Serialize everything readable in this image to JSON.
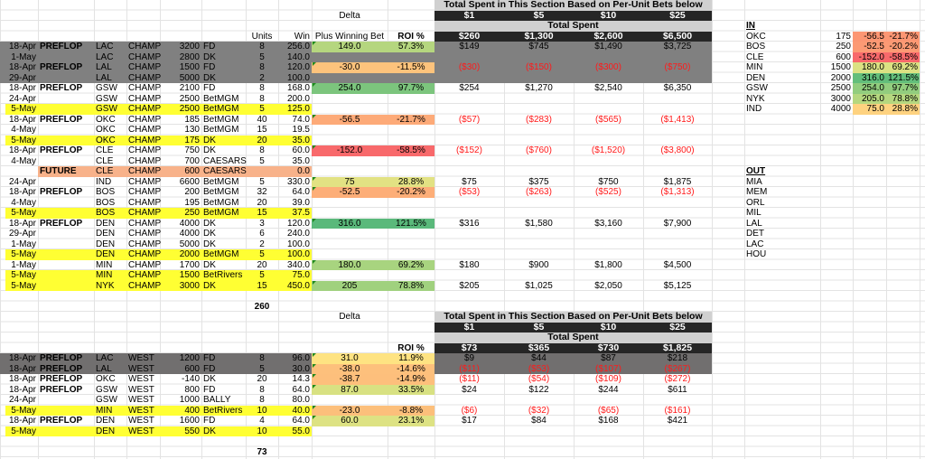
{
  "top": {
    "section_header": "Total Spent in This Section Based on Per-Unit Bets below",
    "delta_label": "Delta",
    "unit_bets": [
      "$1",
      "$5",
      "$10",
      "$25"
    ],
    "total_spent_label": "Total Spent",
    "units_label": "Units",
    "win_label": "Win",
    "plus_label": "Plus Winning Bet",
    "roi_label": "ROI %",
    "totals": [
      "$260",
      "$1,300",
      "$2,600",
      "$6,500"
    ],
    "units_total": "260",
    "rows": [
      {
        "date": "18-Apr",
        "type": "PREFLOP",
        "team": "LAC",
        "market": "CHAMP",
        "odds": "3200",
        "book": "FD",
        "units": "8",
        "win": "256.0",
        "hl": "gray",
        "delta": "149.0",
        "roi": "57.3%",
        "color": "#b5d67f",
        "spent": [
          "$149",
          "$745",
          "$1,490",
          "$3,725"
        ],
        "neg": false
      },
      {
        "date": "1-May",
        "type": "",
        "team": "LAC",
        "market": "CHAMP",
        "odds": "2800",
        "book": "DK",
        "units": "5",
        "win": "140.0",
        "hl": "gray"
      },
      {
        "date": "18-Apr",
        "type": "PREFLOP",
        "team": "LAL",
        "market": "CHAMP",
        "odds": "1500",
        "book": "FD",
        "units": "8",
        "win": "120.0",
        "hl": "gray",
        "delta": "-30.0",
        "roi": "-11.5%",
        "color": "#fdc37c",
        "spent": [
          "($30)",
          "($150)",
          "($300)",
          "($750)"
        ],
        "neg": true
      },
      {
        "date": "29-Apr",
        "type": "",
        "team": "LAL",
        "market": "CHAMP",
        "odds": "5000",
        "book": "DK",
        "units": "2",
        "win": "100.0",
        "hl": "gray"
      },
      {
        "date": "18-Apr",
        "type": "PREFLOP",
        "team": "GSW",
        "market": "CHAMP",
        "odds": "2100",
        "book": "FD",
        "units": "8",
        "win": "168.0",
        "hl": "",
        "delta": "254.0",
        "roi": "97.7%",
        "color": "#7cc57d",
        "spent": [
          "$254",
          "$1,270",
          "$2,540",
          "$6,350"
        ],
        "neg": false
      },
      {
        "date": "24-Apr",
        "type": "",
        "team": "GSW",
        "market": "CHAMP",
        "odds": "2500",
        "book": "BetMGM",
        "units": "8",
        "win": "200.0",
        "hl": ""
      },
      {
        "date": "5-May",
        "type": "",
        "team": "GSW",
        "market": "CHAMP",
        "odds": "2500",
        "book": "BetMGM",
        "units": "5",
        "win": "125.0",
        "hl": "yellow"
      },
      {
        "date": "18-Apr",
        "type": "PREFLOP",
        "team": "OKC",
        "market": "CHAMP",
        "odds": "185",
        "book": "BetMGM",
        "units": "40",
        "win": "74.0",
        "hl": "",
        "delta": "-56.5",
        "roi": "-21.7%",
        "color": "#fdaa78",
        "spent": [
          "($57)",
          "($283)",
          "($565)",
          "($1,413)"
        ],
        "neg": true
      },
      {
        "date": "4-May",
        "type": "",
        "team": "OKC",
        "market": "CHAMP",
        "odds": "130",
        "book": "BetMGM",
        "units": "15",
        "win": "19.5",
        "hl": ""
      },
      {
        "date": "5-May",
        "type": "",
        "team": "OKC",
        "market": "CHAMP",
        "odds": "175",
        "book": "DK",
        "units": "20",
        "win": "35.0",
        "hl": "yellow"
      },
      {
        "date": "18-Apr",
        "type": "PREFLOP",
        "team": "CLE",
        "market": "CHAMP",
        "odds": "750",
        "book": "DK",
        "units": "8",
        "win": "60.0",
        "hl": "",
        "delta": "-152.0",
        "roi": "-58.5%",
        "color": "#f8696b",
        "spent": [
          "($152)",
          "($760)",
          "($1,520)",
          "($3,800)"
        ],
        "neg": true
      },
      {
        "date": "4-May",
        "type": "",
        "team": "CLE",
        "market": "CHAMP",
        "odds": "700",
        "book": "CAESARS",
        "units": "5",
        "win": "35.0",
        "hl": ""
      },
      {
        "date": "",
        "type": "FUTURE",
        "team": "CLE",
        "market": "CHAMP",
        "odds": "600",
        "book": "CAESARS",
        "units": "",
        "win": "0.0",
        "hl": "future"
      },
      {
        "date": "24-Apr",
        "type": "",
        "team": "IND",
        "market": "CHAMP",
        "odds": "6600",
        "book": "BetMGM",
        "units": "5",
        "win": "330.0",
        "hl": "",
        "delta": "75",
        "roi": "28.8%",
        "color": "#e2e283",
        "spent": [
          "$75",
          "$375",
          "$750",
          "$1,875"
        ],
        "neg": false
      },
      {
        "date": "18-Apr",
        "type": "PREFLOP",
        "team": "BOS",
        "market": "CHAMP",
        "odds": "200",
        "book": "BetMGM",
        "units": "32",
        "win": "64.0",
        "hl": "",
        "delta": "-52.5",
        "roi": "-20.2%",
        "color": "#fdae78",
        "spent": [
          "($53)",
          "($263)",
          "($525)",
          "($1,313)"
        ],
        "neg": true
      },
      {
        "date": "4-May",
        "type": "",
        "team": "BOS",
        "market": "CHAMP",
        "odds": "195",
        "book": "BetMGM",
        "units": "20",
        "win": "39.0",
        "hl": ""
      },
      {
        "date": "5-May",
        "type": "",
        "team": "BOS",
        "market": "CHAMP",
        "odds": "250",
        "book": "BetMGM",
        "units": "15",
        "win": "37.5",
        "hl": "yellow"
      },
      {
        "date": "18-Apr",
        "type": "PREFLOP",
        "team": "DEN",
        "market": "CHAMP",
        "odds": "4000",
        "book": "DK",
        "units": "3",
        "win": "120.0",
        "hl": "",
        "delta": "316.0",
        "roi": "121.5%",
        "color": "#5ab97b",
        "spent": [
          "$316",
          "$1,580",
          "$3,160",
          "$7,900"
        ],
        "neg": false
      },
      {
        "date": "29-Apr",
        "type": "",
        "team": "DEN",
        "market": "CHAMP",
        "odds": "4000",
        "book": "DK",
        "units": "6",
        "win": "240.0",
        "hl": ""
      },
      {
        "date": "1-May",
        "type": "",
        "team": "DEN",
        "market": "CHAMP",
        "odds": "5000",
        "book": "DK",
        "units": "2",
        "win": "100.0",
        "hl": ""
      },
      {
        "date": "5-May",
        "type": "",
        "team": "DEN",
        "market": "CHAMP",
        "odds": "2000",
        "book": "BetMGM",
        "units": "5",
        "win": "100.0",
        "hl": "yellow"
      },
      {
        "date": "1-May",
        "type": "",
        "team": "MIN",
        "market": "CHAMP",
        "odds": "1700",
        "book": "DK",
        "units": "20",
        "win": "340.0",
        "hl": "",
        "delta": "180.0",
        "roi": "69.2%",
        "color": "#a8d47f",
        "spent": [
          "$180",
          "$900",
          "$1,800",
          "$4,500"
        ],
        "neg": false
      },
      {
        "date": "5-May",
        "type": "",
        "team": "MIN",
        "market": "CHAMP",
        "odds": "1500",
        "book": "BetRivers",
        "units": "5",
        "win": "75.0",
        "hl": "yellow"
      },
      {
        "date": "5-May",
        "type": "",
        "team": "NYK",
        "market": "CHAMP",
        "odds": "3000",
        "book": "DK",
        "units": "15",
        "win": "450.0",
        "hl": "yellow",
        "delta": "205",
        "roi": "78.8%",
        "color": "#a0d17e",
        "spent": [
          "$205",
          "$1,025",
          "$2,050",
          "$5,125"
        ],
        "neg": false
      }
    ]
  },
  "bottom": {
    "section_header": "Total Spent in This Section Based on Per-Unit Bets below",
    "delta_label": "Delta",
    "unit_bets": [
      "$1",
      "$5",
      "$10",
      "$25"
    ],
    "total_spent_label": "Total Spent",
    "roi_label": "ROI %",
    "totals": [
      "$73",
      "$365",
      "$730",
      "$1,825"
    ],
    "units_total": "73",
    "rows": [
      {
        "date": "18-Apr",
        "type": "PREFLOP",
        "team": "LAC",
        "market": "WEST",
        "odds": "1200",
        "book": "FD",
        "units": "8",
        "win": "96.0",
        "hl": "gray2",
        "delta": "31.0",
        "roi": "11.9%",
        "color": "#fee382",
        "spent": [
          "$9",
          "$44",
          "$87",
          "$218"
        ],
        "neg": false
      },
      {
        "date": "18-Apr",
        "type": "PREFLOP",
        "team": "LAL",
        "market": "WEST",
        "odds": "600",
        "book": "FD",
        "units": "5",
        "win": "30.0",
        "hl": "gray2",
        "delta": "-38.0",
        "roi": "-14.6%",
        "color": "#fdc07c",
        "spent": [
          "($11)",
          "($53)",
          "($107)",
          "($267)"
        ],
        "neg": true
      },
      {
        "date": "18-Apr",
        "type": "PREFLOP",
        "team": "OKC",
        "market": "WEST",
        "odds": "-140",
        "book": "DK",
        "units": "20",
        "win": "14.3",
        "hl": "",
        "delta": "-38.7",
        "roi": "-14.9%",
        "color": "#fdbf7c",
        "spent": [
          "($11)",
          "($54)",
          "($109)",
          "($272)"
        ],
        "neg": true
      },
      {
        "date": "18-Apr",
        "type": "PREFLOP",
        "team": "GSW",
        "market": "WEST",
        "odds": "800",
        "book": "FD",
        "units": "8",
        "win": "64.0",
        "hl": "",
        "delta": "87.0",
        "roi": "33.5%",
        "color": "#d8e182",
        "spent": [
          "$24",
          "$122",
          "$244",
          "$611"
        ],
        "neg": false
      },
      {
        "date": "24-Apr",
        "type": "",
        "team": "GSW",
        "market": "WEST",
        "odds": "1000",
        "book": "BALLY",
        "units": "8",
        "win": "80.0",
        "hl": ""
      },
      {
        "date": "5-May",
        "type": "",
        "team": "MIN",
        "market": "WEST",
        "odds": "400",
        "book": "BetRivers",
        "units": "10",
        "win": "40.0",
        "hl": "yellow",
        "delta": "-23.0",
        "roi": "-8.8%",
        "color": "#fcbf7b",
        "spent": [
          "($6)",
          "($32)",
          "($65)",
          "($161)"
        ],
        "neg": true
      },
      {
        "date": "18-Apr",
        "type": "PREFLOP",
        "team": "DEN",
        "market": "WEST",
        "odds": "1600",
        "book": "FD",
        "units": "4",
        "win": "64.0",
        "hl": "",
        "delta": "60.0",
        "roi": "23.1%",
        "color": "#dde283",
        "spent": [
          "$17",
          "$84",
          "$168",
          "$421"
        ],
        "neg": false
      },
      {
        "date": "5-May",
        "type": "",
        "team": "DEN",
        "market": "WEST",
        "odds": "550",
        "book": "DK",
        "units": "10",
        "win": "55.0",
        "hl": "yellow"
      }
    ]
  },
  "side": {
    "in_label": "IN",
    "in_rows": [
      {
        "team": "OKC",
        "odds": "175",
        "delta": "-56.5",
        "roi": "-21.7%",
        "color": "#fc9673"
      },
      {
        "team": "BOS",
        "odds": "250",
        "delta": "-52.5",
        "roi": "-20.2%",
        "color": "#fc9a74"
      },
      {
        "team": "CLE",
        "odds": "600",
        "delta": "-152.0",
        "roi": "-58.5%",
        "color": "#f8696b"
      },
      {
        "team": "MIN",
        "odds": "1500",
        "delta": "180.0",
        "roi": "69.2%",
        "color": "#dbe183"
      },
      {
        "team": "DEN",
        "odds": "2000",
        "delta": "316.0",
        "roi": "121.5%",
        "color": "#63be7b"
      },
      {
        "team": "GSW",
        "odds": "2500",
        "delta": "254.0",
        "roi": "97.7%",
        "color": "#92cd7e"
      },
      {
        "team": "NYK",
        "odds": "3000",
        "delta": "205.0",
        "roi": "78.8%",
        "color": "#b5d77f"
      },
      {
        "team": "IND",
        "odds": "4000",
        "delta": "75.0",
        "roi": "28.8%",
        "color": "#fed280"
      }
    ],
    "out_label": "OUT",
    "out_rows": [
      "MIA",
      "MEM",
      "ORL",
      "MIL",
      "LAL",
      "DET",
      "LAC",
      "HOU"
    ]
  },
  "colors": {
    "gray": "#808080",
    "gray2": "#716f6f",
    "yellow": "#ffff33",
    "future": "#f8b28a",
    "header_dark": "#262626",
    "header_light": "#d0d0d0",
    "negative": "#ff1a1a"
  }
}
